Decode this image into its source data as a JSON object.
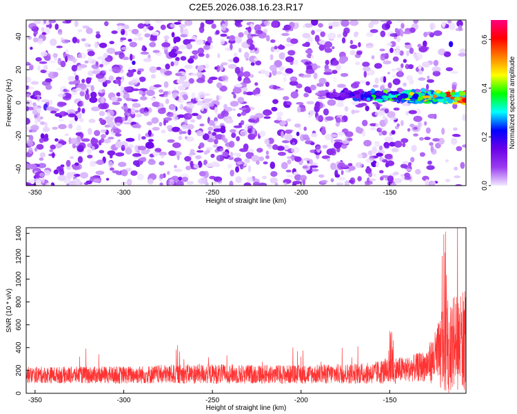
{
  "chart_data": [
    {
      "type": "heatmap",
      "title": "C2E5.2026.038.16.23.R17",
      "xlabel": "Height of straight line (km)",
      "ylabel": "Frequency (Hz)",
      "xlim": [
        -355,
        -107
      ],
      "ylim": [
        -50,
        50
      ],
      "xticks": [
        "-350",
        "-300",
        "-250",
        "-200",
        "-150"
      ],
      "yticks": [
        "-40",
        "-20",
        "0",
        "20",
        "40"
      ],
      "colorbar": {
        "label": "Normalized spectral amplitude",
        "range": [
          0,
          0.68
        ],
        "ticks": [
          "0.0",
          "0.2",
          "0.4",
          "0.6"
        ],
        "colormap": [
          "#f2e8ff",
          "#9a3cf0",
          "#6a00e8",
          "#0000ff",
          "#00ffff",
          "#00ff00",
          "#ffff00",
          "#ff7f00",
          "#ff0000",
          "#ff0080"
        ]
      },
      "features": {
        "background_band_hz": [
          -50,
          50
        ],
        "signal_band_hz": [
          0,
          10
        ],
        "signal_height_range_km": [
          -190,
          -107
        ],
        "peak_amplitude": 0.68
      },
      "grid": false
    },
    {
      "type": "line",
      "xlabel": "Height of straight line (km)",
      "ylabel": "SNR (10 * v/v)",
      "xlim": [
        -355,
        -107
      ],
      "ylim": [
        0,
        1450
      ],
      "xticks": [
        "-350",
        "-300",
        "-250",
        "-200",
        "-150"
      ],
      "yticks": [
        "0",
        "200",
        "400",
        "600",
        "800",
        "1000",
        "1200",
        "1400"
      ],
      "color": "#ff3333",
      "envelope": {
        "x": [
          -355,
          -300,
          -260,
          -200,
          -160,
          -150,
          -140,
          -130,
          -125,
          -120,
          -115,
          -110,
          -107
        ],
        "baseline": [
          160,
          160,
          170,
          165,
          175,
          200,
          210,
          240,
          300,
          380,
          420,
          450,
          480
        ],
        "spread": [
          130,
          140,
          160,
          150,
          170,
          220,
          200,
          250,
          400,
          700,
          800,
          750,
          900
        ]
      },
      "grid": false
    }
  ]
}
